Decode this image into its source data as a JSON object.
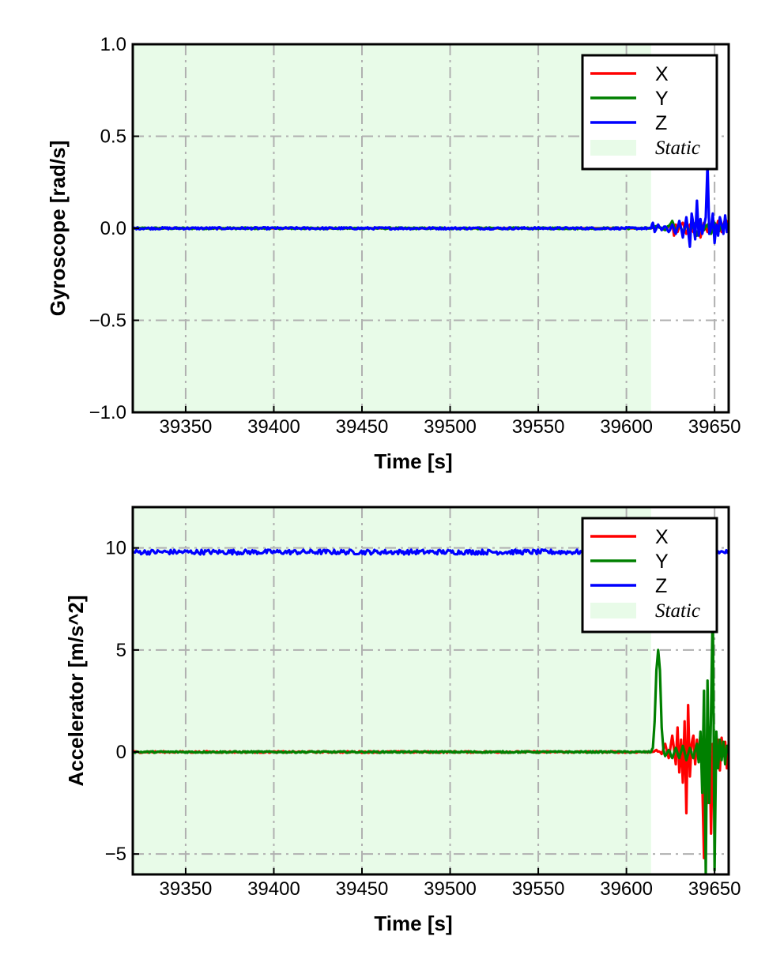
{
  "colors": {
    "X": "#ff0000",
    "Y": "#008000",
    "Z": "#0000ff",
    "static_fill": "#e8fbe8",
    "grid": "#b0b0b0"
  },
  "chart_data": [
    {
      "type": "line",
      "xlabel": "Time [s]",
      "ylabel": "Gyroscope [rad/s]",
      "xlim": [
        39320,
        39658
      ],
      "ylim": [
        -1.0,
        1.0
      ],
      "xticks": [
        39350,
        39400,
        39450,
        39500,
        39550,
        39600,
        39650
      ],
      "xtick_labels": [
        "39350",
        "39400",
        "39450",
        "39500",
        "39550",
        "39600",
        "39650"
      ],
      "yticks": [
        -1.0,
        -0.5,
        0.0,
        0.5,
        1.0
      ],
      "ytick_labels": [
        "−1.0",
        "−0.5",
        "0.0",
        "0.5",
        "1.0"
      ],
      "grid": true,
      "legend_position": "top-right",
      "static_region": [
        39320,
        39614
      ],
      "legend": [
        {
          "name": "X",
          "kind": "line",
          "color_key": "X"
        },
        {
          "name": "Y",
          "kind": "line",
          "color_key": "Y"
        },
        {
          "name": "Z",
          "kind": "line",
          "color_key": "Z"
        },
        {
          "name": "Static",
          "kind": "patch",
          "color_key": "static_fill"
        }
      ],
      "series": [
        {
          "name": "X",
          "color_key": "X",
          "x": [
            39320,
            39614,
            39618,
            39622,
            39626,
            39627,
            39628,
            39629,
            39630,
            39632,
            39634,
            39636,
            39638,
            39640,
            39642,
            39644,
            39646,
            39648,
            39650,
            39652,
            39654,
            39656,
            39658
          ],
          "y": [
            0.0,
            0.0,
            0.01,
            -0.01,
            0.03,
            -0.04,
            0.02,
            -0.02,
            0.01,
            0.03,
            -0.03,
            0.02,
            -0.02,
            0.04,
            -0.05,
            0.03,
            -0.02,
            0.02,
            -0.03,
            0.04,
            -0.02,
            0.05,
            0.02
          ]
        },
        {
          "name": "Y",
          "color_key": "Y",
          "x": [
            39320,
            39614,
            39618,
            39622,
            39626,
            39628,
            39630,
            39632,
            39634,
            39636,
            39638,
            39640,
            39642,
            39644,
            39646,
            39648,
            39650,
            39652,
            39654,
            39656,
            39658
          ],
          "y": [
            0.0,
            0.0,
            0.01,
            -0.01,
            0.04,
            -0.02,
            0.03,
            -0.03,
            0.02,
            -0.02,
            0.03,
            -0.04,
            0.02,
            -0.01,
            0.02,
            -0.03,
            0.03,
            -0.02,
            0.01,
            0.02,
            0.0
          ],
          "y_noise": 0.005
        },
        {
          "name": "Z",
          "color_key": "Z",
          "x": [
            39320,
            39614,
            39615,
            39616,
            39618,
            39620,
            39622,
            39624,
            39626,
            39628,
            39630,
            39632,
            39634,
            39636,
            39637,
            39638,
            39639,
            39640,
            39641,
            39642,
            39643,
            39644,
            39645,
            39646,
            39647,
            39648,
            39649,
            39650,
            39651,
            39652,
            39653,
            39654,
            39655,
            39656,
            39657,
            39658
          ],
          "y": [
            0.0,
            0.0,
            0.03,
            -0.02,
            0.02,
            -0.01,
            0.01,
            -0.02,
            0.02,
            -0.03,
            0.04,
            -0.05,
            0.06,
            -0.1,
            0.08,
            0.02,
            -0.06,
            0.15,
            -0.04,
            0.05,
            -0.03,
            0.02,
            0.06,
            0.35,
            -0.03,
            0.0,
            0.08,
            -0.08,
            0.02,
            -0.04,
            0.06,
            0.02,
            -0.03,
            0.07,
            -0.02,
            0.03
          ],
          "y_noise": 0.006
        }
      ]
    },
    {
      "type": "line",
      "xlabel": "Time [s]",
      "ylabel": "Accelerator [m/s^2]",
      "xlim": [
        39320,
        39658
      ],
      "ylim": [
        -6.0,
        12.0
      ],
      "xticks": [
        39350,
        39400,
        39450,
        39500,
        39550,
        39600,
        39650
      ],
      "xtick_labels": [
        "39350",
        "39400",
        "39450",
        "39500",
        "39550",
        "39600",
        "39650"
      ],
      "yticks": [
        -5,
        0,
        5,
        10
      ],
      "ytick_labels": [
        "−5",
        "0",
        "5",
        "10"
      ],
      "grid": true,
      "legend_position": "top-right",
      "static_region": [
        39320,
        39614
      ],
      "legend": [
        {
          "name": "X",
          "kind": "line",
          "color_key": "X"
        },
        {
          "name": "Y",
          "kind": "line",
          "color_key": "Y"
        },
        {
          "name": "Z",
          "kind": "line",
          "color_key": "Z"
        },
        {
          "name": "Static",
          "kind": "patch",
          "color_key": "static_fill"
        }
      ],
      "series": [
        {
          "name": "Z",
          "color_key": "Z",
          "x": [
            39320,
            39658
          ],
          "y": [
            9.8,
            9.8
          ],
          "y_noise": 0.12
        },
        {
          "name": "X",
          "color_key": "X",
          "x": [
            39320,
            39614,
            39617,
            39620,
            39622,
            39624,
            39626,
            39628,
            39629,
            39630,
            39631,
            39632,
            39633,
            39634,
            39635,
            39636,
            39637,
            39638,
            39639,
            39640,
            39641,
            39642,
            39643,
            39644,
            39645,
            39646,
            39647,
            39648,
            39649,
            39650,
            39651,
            39652,
            39653,
            39654,
            39655,
            39656,
            39657,
            39658
          ],
          "y": [
            0.0,
            0.0,
            0.1,
            -0.1,
            0.4,
            -0.3,
            0.8,
            -0.6,
            1.2,
            -1.0,
            0.6,
            -1.5,
            1.5,
            -3.0,
            2.3,
            -1.2,
            0.4,
            0.8,
            -0.6,
            0.6,
            -0.4,
            0.9,
            -1.3,
            -5.2,
            0.5,
            -2.5,
            1.2,
            -4.0,
            0.4,
            0.3,
            -0.3,
            0.6,
            -0.9,
            0.7,
            -0.2,
            0.5,
            -0.8,
            0.4
          ],
          "y_noise": 0.04
        },
        {
          "name": "Y",
          "color_key": "Y",
          "x": [
            39320,
            39614,
            39615,
            39616,
            39617,
            39618,
            39619,
            39620,
            39621,
            39622,
            39624,
            39626,
            39628,
            39630,
            39632,
            39634,
            39636,
            39638,
            39640,
            39641,
            39642,
            39643,
            39644,
            39645,
            39646,
            39647,
            39648,
            39649,
            39650,
            39651,
            39652,
            39653,
            39654,
            39655,
            39656,
            39657,
            39658
          ],
          "y": [
            0.0,
            0.0,
            0.2,
            1.5,
            4.0,
            5.0,
            4.0,
            1.2,
            0.1,
            -0.2,
            0.1,
            -0.3,
            0.2,
            -0.3,
            0.3,
            -0.4,
            0.2,
            -0.3,
            0.4,
            -0.5,
            1.0,
            -2.0,
            3.0,
            -6.0,
            3.5,
            -2.5,
            2.0,
            7.3,
            -5.8,
            1.0,
            -0.8,
            0.6,
            -0.4,
            0.5,
            -0.6,
            0.3,
            0.0
          ],
          "y_noise": 0.04
        }
      ]
    }
  ]
}
